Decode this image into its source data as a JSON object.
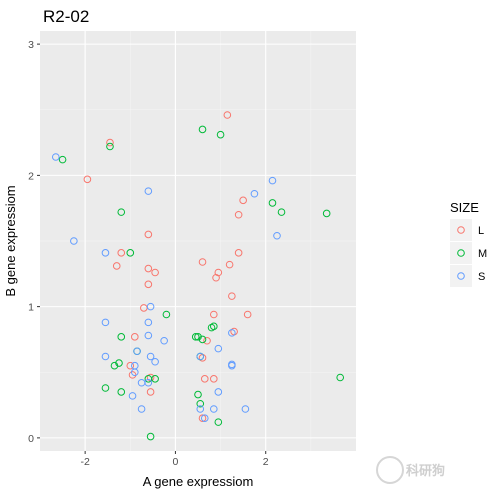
{
  "chart_data": {
    "type": "scatter",
    "title": "R2-02",
    "xlabel": "A gene expressiom",
    "ylabel": "B gene expressiom",
    "xlim": [
      -3.0,
      4.0
    ],
    "ylim": [
      -0.1,
      3.1
    ],
    "x_ticks": [
      -2,
      0,
      2
    ],
    "y_ticks": [
      0,
      1,
      2,
      3
    ],
    "x_tick_labels": [
      "-2",
      "0",
      "2"
    ],
    "y_tick_labels": [
      "0",
      "1",
      "2",
      "3"
    ],
    "grid": true,
    "legend": {
      "title": "SIZE",
      "placement": "right",
      "entries": [
        {
          "label": "L",
          "color": "#F8766D"
        },
        {
          "label": "M",
          "color": "#00BA38"
        },
        {
          "label": "S",
          "color": "#619CFF"
        }
      ]
    },
    "series": [
      {
        "name": "L",
        "color": "#F8766D",
        "points": [
          [
            1.15,
            2.46
          ],
          [
            -1.45,
            2.25
          ],
          [
            -1.95,
            1.97
          ],
          [
            1.5,
            1.81
          ],
          [
            1.4,
            1.7
          ],
          [
            -0.6,
            1.55
          ],
          [
            -1.2,
            1.41
          ],
          [
            1.4,
            1.41
          ],
          [
            0.6,
            1.34
          ],
          [
            -1.3,
            1.31
          ],
          [
            1.2,
            1.32
          ],
          [
            -0.6,
            1.29
          ],
          [
            -0.45,
            1.26
          ],
          [
            0.95,
            1.26
          ],
          [
            0.9,
            1.22
          ],
          [
            -0.6,
            1.17
          ],
          [
            1.25,
            1.08
          ],
          [
            -0.7,
            0.99
          ],
          [
            0.85,
            0.94
          ],
          [
            1.6,
            0.94
          ],
          [
            1.3,
            0.81
          ],
          [
            -0.9,
            0.77
          ],
          [
            0.7,
            0.74
          ],
          [
            0.6,
            0.61
          ],
          [
            -1.0,
            0.55
          ],
          [
            -0.95,
            0.48
          ],
          [
            -0.55,
            0.46
          ],
          [
            0.65,
            0.45
          ],
          [
            0.85,
            0.45
          ],
          [
            -0.55,
            0.35
          ],
          [
            0.6,
            0.15
          ]
        ]
      },
      {
        "name": "M",
        "color": "#00BA38",
        "points": [
          [
            -2.5,
            2.12
          ],
          [
            -1.45,
            2.22
          ],
          [
            0.6,
            2.35
          ],
          [
            1.0,
            2.31
          ],
          [
            -1.2,
            1.72
          ],
          [
            2.15,
            1.79
          ],
          [
            2.35,
            1.72
          ],
          [
            3.35,
            1.71
          ],
          [
            -1.0,
            1.41
          ],
          [
            -0.2,
            0.94
          ],
          [
            0.8,
            0.84
          ],
          [
            0.85,
            0.85
          ],
          [
            -1.2,
            0.77
          ],
          [
            0.45,
            0.77
          ],
          [
            0.5,
            0.77
          ],
          [
            0.6,
            0.75
          ],
          [
            -0.85,
            0.66
          ],
          [
            0.55,
            0.62
          ],
          [
            -1.25,
            0.57
          ],
          [
            -1.35,
            0.55
          ],
          [
            -0.6,
            0.45
          ],
          [
            -0.45,
            0.45
          ],
          [
            3.65,
            0.46
          ],
          [
            -1.55,
            0.38
          ],
          [
            -1.2,
            0.35
          ],
          [
            0.5,
            0.33
          ],
          [
            0.55,
            0.26
          ],
          [
            0.95,
            0.12
          ],
          [
            -0.55,
            0.01
          ]
        ]
      },
      {
        "name": "S",
        "color": "#619CFF",
        "points": [
          [
            -2.65,
            2.14
          ],
          [
            2.15,
            1.96
          ],
          [
            1.75,
            1.86
          ],
          [
            -0.6,
            1.88
          ],
          [
            -2.25,
            1.5
          ],
          [
            2.25,
            1.54
          ],
          [
            -1.55,
            1.41
          ],
          [
            -0.55,
            1.0
          ],
          [
            -1.55,
            0.88
          ],
          [
            -0.6,
            0.88
          ],
          [
            -0.6,
            0.78
          ],
          [
            -0.25,
            0.74
          ],
          [
            0.95,
            0.68
          ],
          [
            1.25,
            0.8
          ],
          [
            -0.85,
            0.66
          ],
          [
            -1.55,
            0.62
          ],
          [
            -0.55,
            0.62
          ],
          [
            -0.45,
            0.58
          ],
          [
            0.55,
            0.62
          ],
          [
            -0.9,
            0.55
          ],
          [
            1.25,
            0.56
          ],
          [
            1.25,
            0.55
          ],
          [
            -0.9,
            0.5
          ],
          [
            -0.75,
            0.42
          ],
          [
            -0.6,
            0.42
          ],
          [
            -0.95,
            0.32
          ],
          [
            0.95,
            0.35
          ],
          [
            -0.75,
            0.22
          ],
          [
            0.55,
            0.22
          ],
          [
            0.85,
            0.22
          ],
          [
            1.55,
            0.22
          ],
          [
            0.65,
            0.15
          ]
        ]
      }
    ]
  }
}
